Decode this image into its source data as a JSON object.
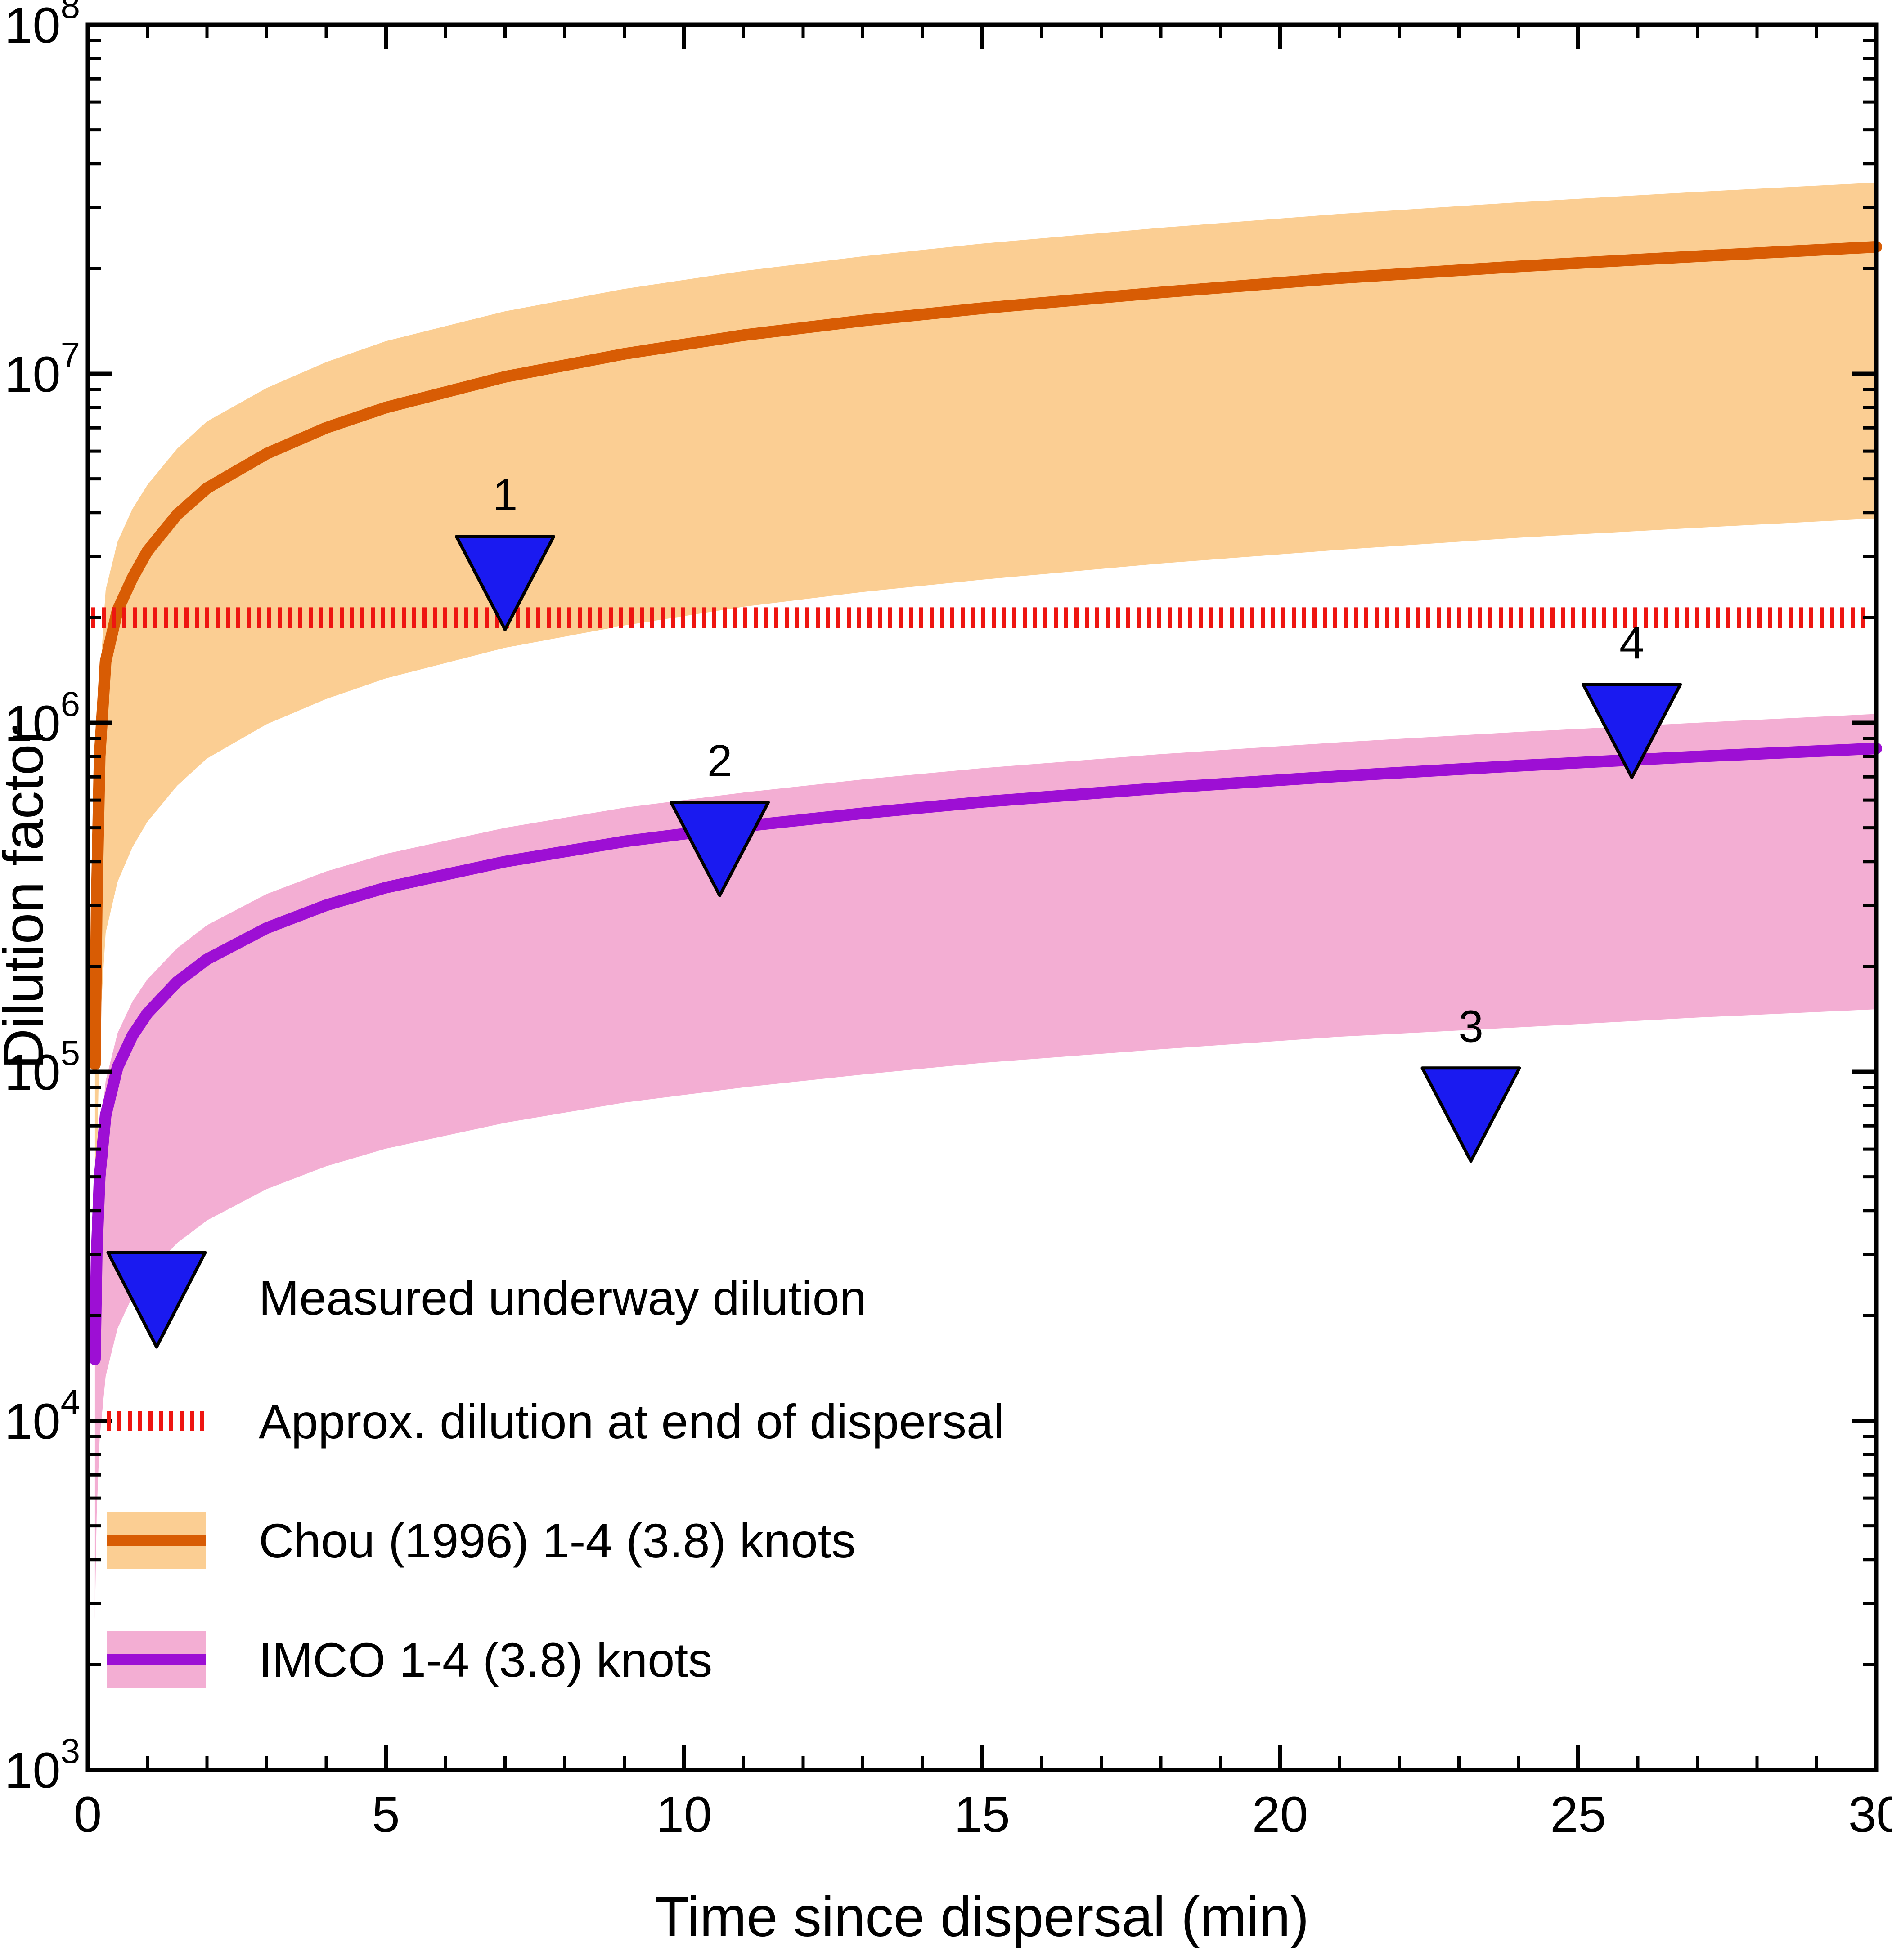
{
  "chart_data": {
    "type": "line",
    "title": "",
    "xlabel": "Time since dispersal (min)",
    "ylabel": "Dilution factor",
    "x_range": [
      0,
      30
    ],
    "x_major_ticks": [
      0,
      5,
      10,
      15,
      20,
      25,
      30
    ],
    "x_minor_tick_step": 1,
    "y_scale": "log10",
    "y_exponent_range": [
      3,
      8
    ],
    "y_major_tick_exponents": [
      3,
      4,
      5,
      6,
      7,
      8
    ],
    "grid": false,
    "legend_position": "lower-left-inside",
    "x": [
      0.12,
      0.15,
      0.2,
      0.3,
      0.5,
      0.75,
      1,
      1.5,
      2,
      3,
      4,
      5,
      7,
      9,
      11,
      13,
      15,
      18,
      21,
      24,
      27,
      30
    ],
    "series": [
      {
        "id": "chou",
        "name": "Chou (1996) 1-4 (3.8) knots",
        "line_color": "#d85c04",
        "band_color": "#fbce93",
        "values": [
          105000,
          300000,
          800000,
          1500000,
          2100000,
          2600000,
          3100000,
          3950000,
          4700000,
          5900000,
          7000000,
          8000000,
          9800000,
          11400000,
          12900000,
          14200000,
          15400000,
          17100000,
          18800000,
          20300000,
          21700000,
          23100000
        ],
        "band_upper": [
          170000,
          500000,
          1300000,
          2400000,
          3300000,
          4100000,
          4800000,
          6100000,
          7300000,
          9100000,
          10800000,
          12400000,
          15100000,
          17500000,
          19700000,
          21700000,
          23600000,
          26200000,
          28700000,
          31000000,
          33200000,
          35300000
        ],
        "band_lower": [
          18000,
          50000,
          130000,
          250000,
          350000,
          440000,
          520000,
          660000,
          790000,
          990000,
          1170000,
          1340000,
          1640000,
          1900000,
          2150000,
          2370000,
          2570000,
          2860000,
          3130000,
          3390000,
          3620000,
          3850000
        ]
      },
      {
        "id": "imco",
        "name": "IMCO 1-4 (3.8) knots",
        "line_color": "#9d0fd4",
        "band_color": "#f3aed3",
        "values": [
          15000,
          30000,
          50000,
          75000,
          103000,
          127000,
          147000,
          181000,
          210000,
          258000,
          300000,
          337000,
          400000,
          457000,
          505000,
          550000,
          593000,
          650000,
          703000,
          753000,
          800000,
          844000
        ],
        "band_upper": [
          19000,
          38000,
          63000,
          94000,
          129000,
          159000,
          184000,
          226000,
          263000,
          323000,
          375000,
          421000,
          500000,
          571000,
          631000,
          688000,
          741000,
          813000,
          879000,
          941000,
          1000000,
          1060000
        ],
        "band_lower": [
          2700,
          5400,
          8900,
          13400,
          18400,
          22700,
          26300,
          32300,
          37500,
          46100,
          53600,
          60200,
          71400,
          81600,
          90200,
          98200,
          106000,
          116000,
          126000,
          134000,
          143000,
          151000
        ]
      }
    ],
    "reference_line": {
      "id": "dispersal-end-dilution",
      "label": "Approx. dilution at end of dispersal",
      "value": 2000000,
      "color": "#ee1511",
      "style": "dense-vertical-dashes"
    },
    "measured_points": {
      "name": "Measured underway dilution",
      "marker": "triangle-down",
      "fill": "#1a1af0",
      "edge": "#000000",
      "points": [
        {
          "label": "1",
          "x": 7.0,
          "y": 2600000
        },
        {
          "label": "2",
          "x": 10.6,
          "y": 450000
        },
        {
          "label": "3",
          "x": 23.2,
          "y": 78000
        },
        {
          "label": "4",
          "x": 25.9,
          "y": 980000
        }
      ]
    }
  },
  "legend": {
    "items": [
      {
        "swatch": "marker",
        "label": "Measured underway dilution"
      },
      {
        "swatch": "refline",
        "label": "Approx. dilution at end of dispersal"
      },
      {
        "swatch": "band",
        "series": "chou",
        "label": "Chou (1996) 1-4 (3.8) knots"
      },
      {
        "swatch": "band",
        "series": "imco",
        "label": "IMCO 1-4 (3.8) knots"
      }
    ]
  }
}
